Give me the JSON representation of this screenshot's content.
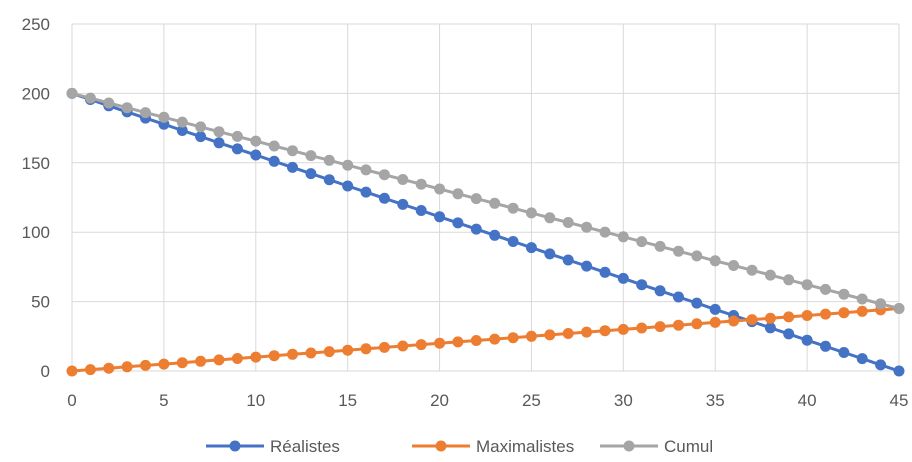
{
  "chart_data": {
    "type": "line",
    "title": "",
    "xlabel": "",
    "ylabel": "",
    "xlim": [
      0,
      45
    ],
    "ylim": [
      0,
      250
    ],
    "x_ticks": [
      "0",
      "5",
      "10",
      "15",
      "20",
      "25",
      "30",
      "35",
      "40",
      "45"
    ],
    "y_ticks": [
      "0",
      "50",
      "100",
      "150",
      "200",
      "250"
    ],
    "grid": true,
    "legend_position": "bottom",
    "x": [
      0,
      1,
      2,
      3,
      4,
      5,
      6,
      7,
      8,
      9,
      10,
      11,
      12,
      13,
      14,
      15,
      16,
      17,
      18,
      19,
      20,
      21,
      22,
      23,
      24,
      25,
      26,
      27,
      28,
      29,
      30,
      31,
      32,
      33,
      34,
      35,
      36,
      37,
      38,
      39,
      40,
      41,
      42,
      43,
      44,
      45
    ],
    "series": [
      {
        "name": "Réalistes",
        "color": "#4472C4",
        "values": [
          200,
          195.6,
          191.1,
          186.7,
          182.2,
          177.8,
          173.3,
          168.9,
          164.4,
          160,
          155.6,
          151.1,
          146.7,
          142.2,
          137.8,
          133.3,
          128.9,
          124.4,
          120,
          115.6,
          111.1,
          106.7,
          102.2,
          97.8,
          93.3,
          88.9,
          84.4,
          80,
          75.6,
          71.1,
          66.7,
          62.2,
          57.8,
          53.3,
          48.9,
          44.4,
          40,
          35.6,
          31.1,
          26.7,
          22.2,
          17.8,
          13.3,
          8.9,
          4.4,
          0
        ]
      },
      {
        "name": "Maximalistes",
        "color": "#ED7D31",
        "values": [
          0,
          1,
          2,
          3,
          4,
          5,
          6,
          7,
          8,
          9,
          10,
          11,
          12,
          13,
          14,
          15,
          16,
          17,
          18,
          19,
          20,
          21,
          22,
          23,
          24,
          25,
          26,
          27,
          28,
          29,
          30,
          31,
          32,
          33,
          34,
          35,
          36,
          37,
          38,
          39,
          40,
          41,
          42,
          43,
          44,
          45
        ]
      },
      {
        "name": "Cumul",
        "color": "#A5A5A5",
        "values": [
          200,
          196.6,
          193.1,
          189.7,
          186.2,
          182.8,
          179.3,
          175.9,
          172.4,
          169,
          165.6,
          162.1,
          158.7,
          155.2,
          151.8,
          148.3,
          144.9,
          141.4,
          138,
          134.6,
          131.1,
          127.7,
          124.2,
          120.8,
          117.3,
          113.9,
          110.4,
          107,
          103.6,
          100.1,
          96.7,
          93.2,
          89.8,
          86.3,
          82.9,
          79.4,
          76,
          72.6,
          69.1,
          65.7,
          62.2,
          58.8,
          55.3,
          51.9,
          48.4,
          45
        ]
      }
    ]
  }
}
